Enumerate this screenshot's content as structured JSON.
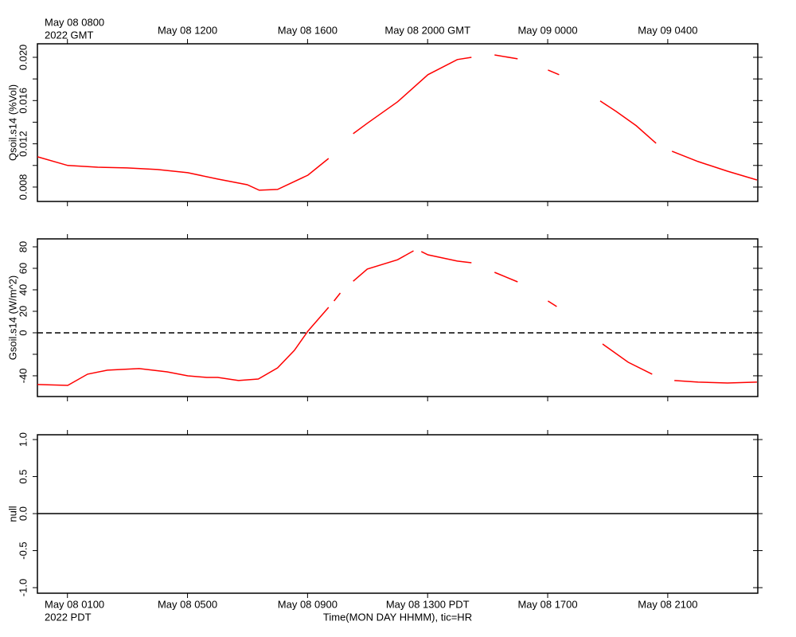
{
  "chart_data": [
    {
      "type": "line",
      "y_label": "Qsoil.s14 (%Vol)",
      "color": "#ff0000",
      "xlim": [
        0,
        24
      ],
      "xtick_side": "top",
      "x_note": "2022 GMT",
      "xticks": [
        {
          "value": 1,
          "label": "May 08 0800"
        },
        {
          "value": 5,
          "label": "May 08 1200"
        },
        {
          "value": 9,
          "label": "May 08 1600"
        },
        {
          "value": 13,
          "label": "May 08 2000 GMT"
        },
        {
          "value": 17,
          "label": "May 09 0000"
        },
        {
          "value": 21,
          "label": "May 09 0400"
        }
      ],
      "ylim": [
        0.00667,
        0.02125
      ],
      "yticks": [
        0.008,
        0.012,
        0.016,
        {
          "value": 0.02,
          "label": "0.020"
        }
      ],
      "yminor": [
        0.01,
        0.014,
        0.018
      ],
      "x": [
        0,
        1.01,
        2.01,
        2.99,
        4,
        5.01,
        6.01,
        6.99,
        7.39,
        8,
        9.01,
        9.7,
        null,
        10.52,
        10.99,
        12,
        13.01,
        13.99,
        14.46,
        null,
        15.23,
        16,
        null,
        17.01,
        17.38,
        null,
        18.75,
        19.28,
        19.95,
        20.61,
        null,
        21.14,
        22.01,
        22.99,
        23.97
      ],
      "values": [
        0.0108,
        0.01,
        0.00984,
        0.00977,
        0.00962,
        0.00933,
        0.00874,
        0.00822,
        0.00771,
        0.00778,
        0.0091,
        0.01065,
        null,
        0.01294,
        0.0139,
        0.01589,
        0.01839,
        0.01979,
        0.02,
        null,
        0.02022,
        0.01986,
        null,
        0.01883,
        0.01839,
        null,
        0.01596,
        0.015,
        0.01367,
        0.01205,
        null,
        0.01132,
        0.01036,
        0.00947,
        0.00866
      ]
    },
    {
      "type": "line",
      "y_label": "Gsoil.s14 (W/m^2)",
      "color": "#ff0000",
      "xlim": [
        0,
        24
      ],
      "xticks": [
        1,
        5,
        9,
        13,
        17,
        21
      ],
      "ylim": [
        -59.3,
        87.4
      ],
      "yticks": [
        -40,
        0,
        20,
        40,
        60,
        80
      ],
      "yminor": [
        -20
      ],
      "ref_line": 0,
      "ref_style": "dashed",
      "x": [
        0,
        1.01,
        1.67,
        2.33,
        3.39,
        4.32,
        5.01,
        5.64,
        6.01,
        6.7,
        7.36,
        8,
        8.56,
        9.01,
        9.7,
        null,
        9.88,
        10.09,
        null,
        10.52,
        10.99,
        12,
        12.53,
        null,
        12.79,
        13.01,
        13.99,
        14.46,
        null,
        15.23,
        16,
        null,
        17.01,
        17.3,
        null,
        18.83,
        19.68,
        20.48,
        null,
        21.22,
        22.01,
        22.99,
        23.97
      ],
      "values": [
        -48.1,
        -48.9,
        -38.5,
        -34.8,
        -33.3,
        -36.3,
        -40,
        -41.5,
        -41.5,
        -44.4,
        -43,
        -32.6,
        -16.3,
        1.5,
        23.7,
        null,
        29.6,
        37,
        null,
        48,
        59.3,
        68,
        76.3,
        null,
        75.6,
        72.6,
        66.7,
        65.2,
        null,
        56.3,
        47.4,
        null,
        29.6,
        24.4,
        null,
        -10.4,
        -27.4,
        -38.5,
        null,
        -44.4,
        -45.9,
        -46.7,
        -45.9
      ]
    },
    {
      "type": "line",
      "y_label": "null",
      "xlim": [
        0,
        24
      ],
      "xtick_side": "bottom",
      "x_note": "2022 PDT",
      "x_label": "Time(MON DAY HHMM), tic=HR",
      "xticks": [
        {
          "value": 1,
          "label": "May 08 0100"
        },
        {
          "value": 5,
          "label": "May 08 0500"
        },
        {
          "value": 9,
          "label": "May 08 0900"
        },
        {
          "value": 13,
          "label": "May 08 1300 PDT"
        },
        {
          "value": 17,
          "label": "May 08 1700"
        },
        {
          "value": 21,
          "label": "May 08 2100"
        }
      ],
      "ylim": [
        -1.075,
        1.065
      ],
      "yticks": [
        {
          "value": -1,
          "label": "-1.0"
        },
        -0.5,
        {
          "value": 0,
          "label": "0.0"
        },
        0.5,
        {
          "value": 1,
          "label": "1.0"
        }
      ],
      "ref_line": 0,
      "ref_style": "solid"
    }
  ]
}
